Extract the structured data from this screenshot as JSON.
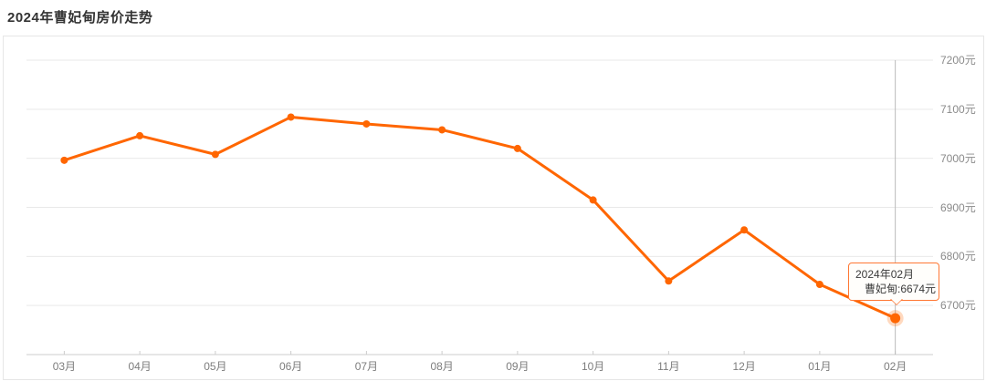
{
  "page": {
    "title": "2024年曹妃甸房价走势"
  },
  "chart_data": {
    "type": "line",
    "title": "2024年曹妃甸房价走势",
    "categories": [
      "03月",
      "04月",
      "05月",
      "06月",
      "07月",
      "08月",
      "09月",
      "10月",
      "11月",
      "12月",
      "01月",
      "02月"
    ],
    "series": [
      {
        "name": "曹妃甸",
        "values": [
          6996,
          7046,
          7008,
          7084,
          7070,
          7058,
          7020,
          6915,
          6750,
          6854,
          6743,
          6674
        ]
      }
    ],
    "y_ticks": [
      7200,
      7100,
      7000,
      6900,
      6800,
      6700
    ],
    "y_tick_suffix": "元",
    "ylim": [
      6600,
      7200
    ],
    "grid": true,
    "legend": "none",
    "highlight_index": 11
  },
  "tooltip": {
    "line1": "2024年02月",
    "line2": "曹妃甸:6674元"
  },
  "colors": {
    "line": "#ff6600",
    "point": "#ff6600",
    "highlight_halo": "rgba(255,102,0,0.25)",
    "grid": "#e9e9e9",
    "axis": "#cccccc",
    "crosshair": "#bbbbbb",
    "title_text": "#333333",
    "tick_label": "#8a8a8a",
    "tooltip_border": "#ff7733",
    "tooltip_bg": "#fffefb",
    "tooltip_text": "#3a3a3a",
    "panel_border": "#e6e6e6"
  }
}
